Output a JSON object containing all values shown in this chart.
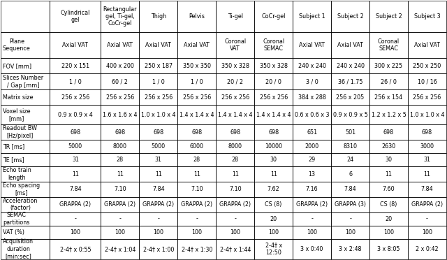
{
  "col_headers": [
    "Cylindrical\ngel",
    "Rectangular\ngel, Ti-gel,\nCoCr-gel",
    "Thigh",
    "Pelvis",
    "Ti-gel",
    "CoCr-gel",
    "Subject 1",
    "Subject 2",
    "Subject 2",
    "Subject 3"
  ],
  "row_headers": [
    "Plane\nSequence",
    "FOV [mm]",
    "Slices Number\n/ Gap [mm]",
    "Matrix size",
    "Voxel size\n[mm]",
    "Readout BW\n[Hz/pixel]",
    "TR [ms]",
    "TE [ms]",
    "Echo train\nlength",
    "Echo spacing\n[ms]",
    "Acceleration\n(factor)",
    "SEMAC\npartitions",
    "VAT (%)",
    "Acquisition\nduration\n[min:sec]"
  ],
  "table_data": [
    [
      "Axial VAT",
      "Axial VAT",
      "Axial VAT",
      "Axial VAT",
      "Coronal\nVAT",
      "Coronal\nSEMAC",
      "Axial VAT",
      "Axial VAT",
      "Coronal\nSEMAC",
      "Axial VAT"
    ],
    [
      "220 x 151",
      "400 x 200",
      "250 x 187",
      "350 x 350",
      "350 x 328",
      "350 x 328",
      "240 x 240",
      "240 x 240",
      "300 x 225",
      "250 x 250"
    ],
    [
      "1 / 0",
      "60 / 2",
      "1 / 0",
      "1 / 0",
      "20 / 2",
      "20 / 0",
      "3 / 0",
      "36 / 1.75",
      "26 / 0",
      "10 / 16"
    ],
    [
      "256 x 256",
      "256 x 256",
      "256 x 256",
      "256 x 256",
      "256 x 256",
      "256 x 256",
      "384 x 288",
      "256 x 205",
      "256 x 154",
      "256 x 256"
    ],
    [
      "0.9 x 0.9 x 4",
      "1.6 x 1.6 x 4",
      "1.0 x 1.0 x 4",
      "1.4 x 1.4 x 4",
      "1.4 x 1.4 x 4",
      "1.4 x 1.4 x 4",
      "0.6 x 0.6 x 3",
      "0.9 x 0.9 x 5",
      "1.2 x 1.2 x 5",
      "1.0 x 1.0 x 4"
    ],
    [
      "698",
      "698",
      "698",
      "698",
      "698",
      "698",
      "651",
      "501",
      "698",
      "698"
    ],
    [
      "5000",
      "8000",
      "5000",
      "6000",
      "8000",
      "10000",
      "2000",
      "8310",
      "2630",
      "3000"
    ],
    [
      "31",
      "28",
      "31",
      "28",
      "28",
      "30",
      "29",
      "24",
      "30",
      "31"
    ],
    [
      "11",
      "11",
      "11",
      "11",
      "11",
      "11",
      "13",
      "6",
      "11",
      "11"
    ],
    [
      "7.84",
      "7.10",
      "7.84",
      "7.10",
      "7.10",
      "7.62",
      "7.16",
      "7.84",
      "7.60",
      "7.84"
    ],
    [
      "GRAPPA (2)",
      "GRAPPA (2)",
      "GRAPPA (2)",
      "GRAPPA (2)",
      "GRAPPA (2)",
      "CS (8)",
      "GRAPPA (2)",
      "GRAPPA (3)",
      "CS (8)",
      "GRAPPA (2)"
    ],
    [
      "-",
      "-",
      "-",
      "-",
      "-",
      "20",
      "-",
      "-",
      "20",
      "-"
    ],
    [
      "100",
      "100",
      "100",
      "100",
      "100",
      "100",
      "100",
      "100",
      "100",
      "100"
    ],
    [
      "2-4† x 0:55",
      "2-4† x 1:04",
      "2-4† x 1:00",
      "2-4† x 1:30",
      "2-4† x 1:44",
      "2-4† x\n12:50",
      "3 x 0:40",
      "3 x 2:48",
      "3 x 8:05",
      "2 x 0:42"
    ]
  ],
  "bg_color": "#ffffff",
  "text_color": "#000000",
  "border_color": "#000000",
  "font_size": 5.8,
  "col_widths_raw": [
    1.18,
    1.22,
    0.92,
    0.92,
    0.92,
    0.92,
    0.92,
    0.92,
    0.92,
    0.92,
    0.92
  ],
  "row_heights_raw": [
    1.7,
    1.4,
    0.82,
    0.88,
    0.82,
    1.05,
    0.82,
    0.72,
    0.72,
    0.82,
    0.82,
    0.82,
    0.72,
    0.72,
    1.1
  ]
}
